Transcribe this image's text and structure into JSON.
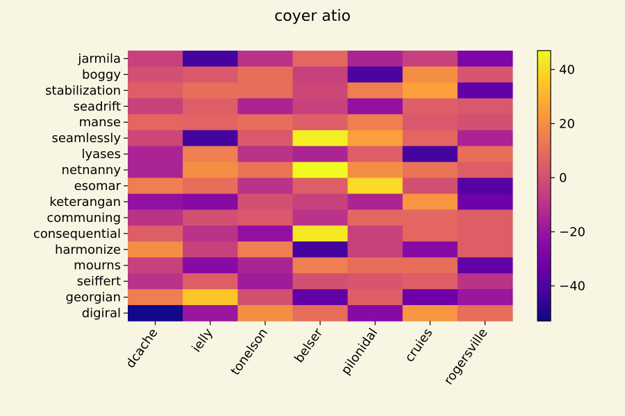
{
  "chart_data": {
    "type": "heatmap",
    "title": "coyer atio",
    "xlabel": "",
    "ylabel": "",
    "colormap": "plasma",
    "x_categories": [
      "dcache",
      "ielly",
      "tonelson",
      "belser",
      "pilonidal",
      "cruies",
      "rogersville"
    ],
    "y_categories": [
      "jarmila",
      "boggy",
      "stabilization",
      "seadrift",
      "manse",
      "seamlessly",
      "lyases",
      "netnanny",
      "esomar",
      "keterangan",
      "communing",
      "consequential",
      "harmonize",
      "mourns",
      "seiffert",
      "georgian",
      "digiral"
    ],
    "values": [
      [
        -5,
        -42,
        -10,
        8,
        -15,
        -5,
        -28
      ],
      [
        0,
        3,
        10,
        -5,
        -40,
        20,
        2
      ],
      [
        5,
        10,
        10,
        -3,
        15,
        25,
        -35
      ],
      [
        -5,
        5,
        -15,
        -5,
        -22,
        5,
        3
      ],
      [
        8,
        7,
        10,
        5,
        15,
        3,
        0
      ],
      [
        -3,
        -42,
        3,
        45,
        25,
        8,
        -15
      ],
      [
        -15,
        15,
        -10,
        -15,
        5,
        -42,
        10
      ],
      [
        -15,
        20,
        12,
        48,
        20,
        12,
        5
      ],
      [
        15,
        10,
        -10,
        5,
        40,
        0,
        -38
      ],
      [
        -22,
        -25,
        0,
        -5,
        -15,
        22,
        -32
      ],
      [
        -10,
        0,
        3,
        -10,
        8,
        8,
        5
      ],
      [
        5,
        -10,
        -22,
        43,
        -5,
        8,
        5
      ],
      [
        20,
        -5,
        15,
        -42,
        -5,
        -25,
        5
      ],
      [
        -5,
        -25,
        -15,
        15,
        10,
        10,
        -35
      ],
      [
        -10,
        5,
        -18,
        0,
        2,
        5,
        -10
      ],
      [
        15,
        35,
        0,
        -35,
        5,
        -32,
        -20
      ],
      [
        -52,
        -20,
        20,
        10,
        -25,
        22,
        10
      ]
    ],
    "colorbar": {
      "min": -53,
      "max": 47,
      "ticks": [
        40,
        20,
        0,
        -20,
        -40
      ],
      "tick_labels": [
        "40",
        "20",
        "0",
        "−20",
        "−40"
      ]
    },
    "grid": false
  }
}
